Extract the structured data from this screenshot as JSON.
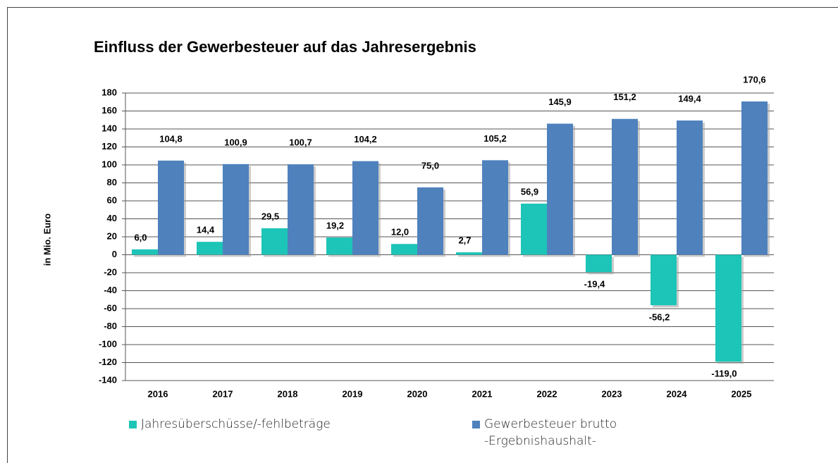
{
  "chart_data": {
    "type": "bar",
    "title": "Einfluss der Gewerbesteuer auf das Jahresergebnis",
    "y_label": "in Mio. Euro",
    "categories": [
      "2016",
      "2017",
      "2018",
      "2019",
      "2020",
      "2021",
      "2022",
      "2023",
      "2024",
      "2025"
    ],
    "series": [
      {
        "name": "Jahresüberschüsse/-fehlbeträge",
        "color": "#1cc5b7",
        "values": [
          6.0,
          14.4,
          29.5,
          19.2,
          12.0,
          2.7,
          56.9,
          -19.4,
          -56.2,
          -119.0
        ],
        "value_labels": [
          "6,0",
          "14,4",
          "29,5",
          "19,2",
          "12,0",
          "2,7",
          "56,9",
          "-19,4",
          "-56,2",
          "-119,0"
        ]
      },
      {
        "name": "Gewerbesteuer brutto\n-Ergebnishaushalt-",
        "color": "#4f81bd",
        "values": [
          104.8,
          100.9,
          100.7,
          104.2,
          75.0,
          105.2,
          145.9,
          151.2,
          149.4,
          170.6
        ],
        "value_labels": [
          "104,8",
          "100,9",
          "100,7",
          "104,2",
          "75,0",
          "105,2",
          "145,9",
          "151,2",
          "149,4",
          "170,6"
        ]
      }
    ],
    "ylim": [
      -140,
      180
    ],
    "yticks": [
      -140,
      -120,
      -100,
      -80,
      -60,
      -40,
      -20,
      0,
      20,
      40,
      60,
      80,
      100,
      120,
      140,
      160,
      180
    ],
    "grid": true
  }
}
